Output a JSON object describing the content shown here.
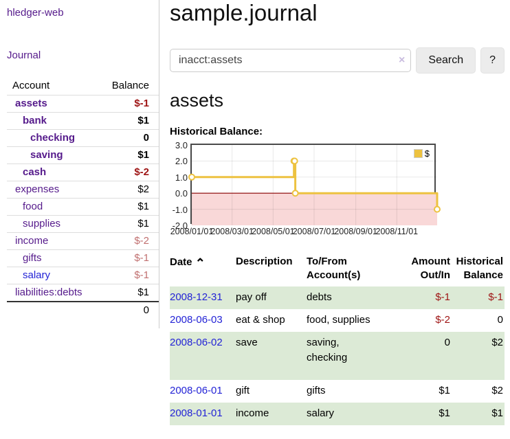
{
  "theme": {
    "link_purple": "#551a8b",
    "link_blue": "#2323d6",
    "negative_red": "#9e1414",
    "negative_muted_red": "#c17070",
    "row_green": "#dcead6",
    "chart_line_gold": "#edc240"
  },
  "sidebar": {
    "brand": "hledger-web",
    "journal_link": "Journal",
    "table": {
      "account_header": "Account",
      "balance_header": "Balance",
      "rows": [
        {
          "account": "assets",
          "balance": "$-1"
        },
        {
          "account": "bank",
          "balance": "$1"
        },
        {
          "account": "checking",
          "balance": "0"
        },
        {
          "account": "saving",
          "balance": "$1"
        },
        {
          "account": "cash",
          "balance": "$-2"
        },
        {
          "account": "expenses",
          "balance": "$2"
        },
        {
          "account": "food",
          "balance": "$1"
        },
        {
          "account": "supplies",
          "balance": "$1"
        },
        {
          "account": "income",
          "balance": "$-2"
        },
        {
          "account": "gifts",
          "balance": "$-1"
        },
        {
          "account": "salary",
          "balance": "$-1"
        },
        {
          "account": "liabilities:debts",
          "balance": "$1"
        }
      ],
      "total": "0"
    }
  },
  "main": {
    "title": "sample.journal",
    "search": {
      "value": "inacct:assets",
      "clear_icon": "×",
      "button": "Search",
      "help_button": "?"
    },
    "account_heading": "assets",
    "chart_title": "Historical Balance:"
  },
  "chart_data": {
    "type": "line",
    "step": true,
    "title": "Historical Balance:",
    "series": [
      {
        "name": "$",
        "color": "#edc240",
        "points": [
          [
            "2008/01/01",
            1
          ],
          [
            "2008/06/01",
            2
          ],
          [
            "2008/06/02",
            2
          ],
          [
            "2008/06/03",
            0
          ],
          [
            "2008/12/31",
            -1
          ]
        ]
      }
    ],
    "x_ticks": [
      "2008/01/01",
      "2008/03/01",
      "2008/05/01",
      "2008/07/01",
      "2008/09/01",
      "2008/11/01"
    ],
    "x_range": [
      "2008/01/01",
      "2008/12/31"
    ],
    "y_ticks": [
      "3.0",
      "2.0",
      "1.0",
      "0.0",
      "-1.0",
      "-2.0"
    ],
    "ylim": [
      -2,
      3
    ],
    "grid": true,
    "legend": {
      "label": "$",
      "position": "top-right"
    },
    "negative_region_color": "#f9d8d8",
    "zero_line_color": "#8b0000"
  },
  "register": {
    "headers": {
      "date": "Date",
      "sort_indicator": "⌃",
      "description": "Description",
      "accounts": "To/From Account(s)",
      "amount": "Amount Out/In",
      "balance": "Historical Balance"
    },
    "rows": [
      {
        "date": "2008-12-31",
        "description": "pay off",
        "accounts": "debts",
        "amount": "$-1",
        "balance": "$-1"
      },
      {
        "date": "2008-06-03",
        "description": "eat & shop",
        "accounts": "food, supplies",
        "amount": "$-2",
        "balance": "0"
      },
      {
        "date": "2008-06-02",
        "description": "save",
        "accounts": "saving, checking",
        "amount": "0",
        "balance": "$2"
      },
      {
        "date": "2008-06-01",
        "description": "gift",
        "accounts": "gifts",
        "amount": "$1",
        "balance": "$2"
      },
      {
        "date": "2008-01-01",
        "description": "income",
        "accounts": "salary",
        "amount": "$1",
        "balance": "$1"
      }
    ]
  }
}
